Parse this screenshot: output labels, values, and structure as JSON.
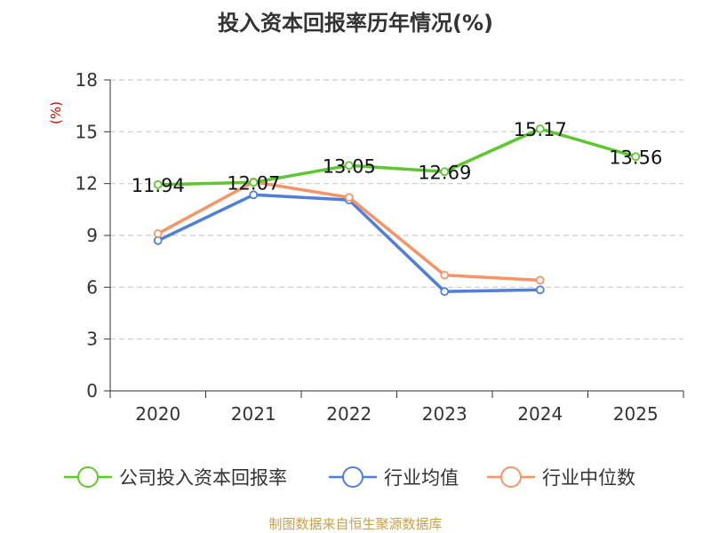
{
  "chart_data": {
    "type": "line",
    "title": "投入资本回报率历年情况(%)",
    "ylabel": "(%)",
    "xlabel": "",
    "categories": [
      "2020",
      "2021",
      "2022",
      "2023",
      "2024",
      "2025"
    ],
    "ylim": [
      0,
      18
    ],
    "yticks": [
      0,
      3,
      6,
      9,
      12,
      15,
      18
    ],
    "grid": true,
    "legend_position": "bottom",
    "series": [
      {
        "name": "公司投入资本回报率",
        "color": "#5dc72f",
        "values": [
          11.94,
          12.07,
          13.05,
          12.69,
          15.17,
          13.56
        ],
        "labels": [
          "11.94",
          "12.07",
          "13.05",
          "12.69",
          "15.17",
          "13.56"
        ]
      },
      {
        "name": "行业均值",
        "color": "#4f7fdb",
        "values": [
          8.7,
          11.35,
          11.05,
          5.75,
          5.85,
          null
        ]
      },
      {
        "name": "行业中位数",
        "color": "#f59466",
        "values": [
          9.1,
          12.1,
          11.2,
          6.7,
          6.4,
          null
        ]
      }
    ]
  },
  "footer": {
    "source": "制图数据来自恒生聚源数据库"
  }
}
